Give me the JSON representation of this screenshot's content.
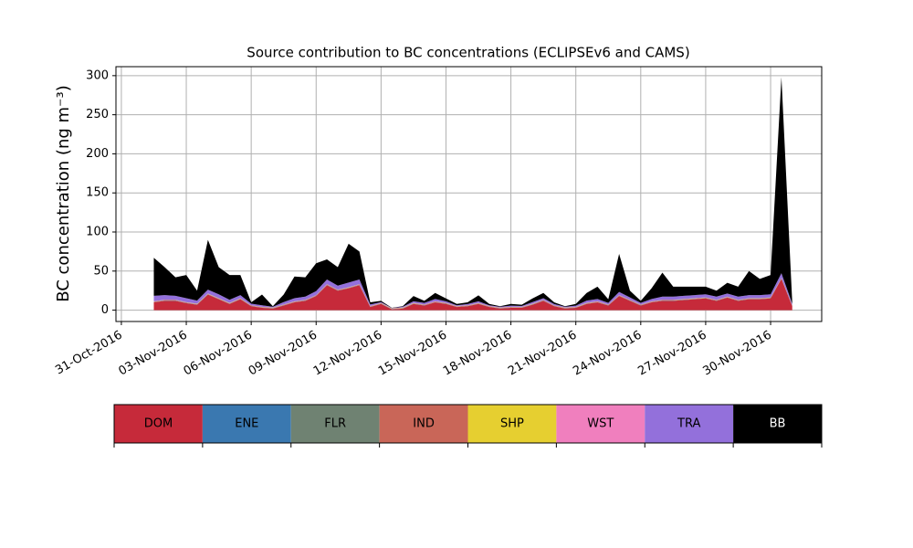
{
  "chart_data": {
    "type": "stacked_area",
    "title": "Source contribution to BC concentrations (ECLIPSEv6 and CAMS)",
    "y_label": "BC concentration (ng m⁻³)",
    "x": [
      "2016-11-01T12:00",
      "2016-11-02T00:00",
      "2016-11-02T12:00",
      "2016-11-03T00:00",
      "2016-11-03T12:00",
      "2016-11-04T00:00",
      "2016-11-04T12:00",
      "2016-11-05T00:00",
      "2016-11-05T12:00",
      "2016-11-06T00:00",
      "2016-11-06T12:00",
      "2016-11-07T00:00",
      "2016-11-07T12:00",
      "2016-11-08T00:00",
      "2016-11-08T12:00",
      "2016-11-09T00:00",
      "2016-11-09T12:00",
      "2016-11-10T00:00",
      "2016-11-10T12:00",
      "2016-11-11T00:00",
      "2016-11-11T12:00",
      "2016-11-12T00:00",
      "2016-11-12T12:00",
      "2016-11-13T00:00",
      "2016-11-13T12:00",
      "2016-11-14T00:00",
      "2016-11-14T12:00",
      "2016-11-15T00:00",
      "2016-11-15T12:00",
      "2016-11-16T00:00",
      "2016-11-16T12:00",
      "2016-11-17T00:00",
      "2016-11-17T12:00",
      "2016-11-18T00:00",
      "2016-11-18T12:00",
      "2016-11-19T00:00",
      "2016-11-19T12:00",
      "2016-11-20T00:00",
      "2016-11-20T12:00",
      "2016-11-21T00:00",
      "2016-11-21T12:00",
      "2016-11-22T00:00",
      "2016-11-22T12:00",
      "2016-11-23T00:00",
      "2016-11-23T12:00",
      "2016-11-24T00:00",
      "2016-11-24T12:00",
      "2016-11-25T00:00",
      "2016-11-25T12:00",
      "2016-11-26T00:00",
      "2016-11-26T12:00",
      "2016-11-27T00:00",
      "2016-11-27T12:00",
      "2016-11-28T00:00",
      "2016-11-28T12:00",
      "2016-11-29T00:00",
      "2016-11-29T12:00",
      "2016-11-30T00:00",
      "2016-11-30T12:00",
      "2016-12-01T00:00"
    ],
    "series": [
      {
        "name": "DOM",
        "color": "#c62a3a",
        "values": [
          10,
          12,
          12,
          9,
          7,
          20,
          14,
          8,
          14,
          5,
          3,
          2,
          6,
          10,
          12,
          18,
          32,
          25,
          28,
          32,
          4,
          8,
          1,
          2,
          8,
          6,
          10,
          8,
          4,
          5,
          8,
          4,
          2,
          3,
          3,
          7,
          12,
          5,
          2,
          3,
          8,
          10,
          6,
          18,
          12,
          6,
          10,
          12,
          12,
          13,
          14,
          15,
          12,
          16,
          12,
          14,
          14,
          15,
          40,
          5
        ]
      },
      {
        "name": "ENE",
        "color": "#3a78b0",
        "values": [
          0.2,
          0.2,
          0.2,
          0.2,
          0.2,
          0.2,
          0.2,
          0.2,
          0.2,
          0.2,
          0.2,
          0.2,
          0.2,
          0.2,
          0.2,
          0.2,
          0.2,
          0.2,
          0.2,
          0.2,
          0.2,
          0.2,
          0.2,
          0.2,
          0.2,
          0.2,
          0.2,
          0.2,
          0.2,
          0.2,
          0.2,
          0.2,
          0.2,
          0.2,
          0.2,
          0.2,
          0.2,
          0.2,
          0.2,
          0.2,
          0.2,
          0.2,
          0.2,
          0.2,
          0.2,
          0.2,
          0.2,
          0.2,
          0.2,
          0.2,
          0.2,
          0.2,
          0.2,
          0.2,
          0.2,
          0.2,
          0.2,
          0.2,
          0.2,
          0.2
        ]
      },
      {
        "name": "FLR",
        "color": "#6f8272",
        "values": [
          0.2,
          0.2,
          0.2,
          0.2,
          0.2,
          0.2,
          0.2,
          0.2,
          0.2,
          0.2,
          0.2,
          0.2,
          0.2,
          0.2,
          0.2,
          0.2,
          0.2,
          0.2,
          0.2,
          0.2,
          0.2,
          0.2,
          0.2,
          0.2,
          0.2,
          0.2,
          0.2,
          0.2,
          0.2,
          0.2,
          0.2,
          0.2,
          0.2,
          0.2,
          0.2,
          0.2,
          0.2,
          0.2,
          0.2,
          0.2,
          0.2,
          0.2,
          0.2,
          0.2,
          0.2,
          0.2,
          0.2,
          0.2,
          0.2,
          0.2,
          0.2,
          0.2,
          0.2,
          0.2,
          0.2,
          0.2,
          0.2,
          0.2,
          0.2,
          0.2
        ]
      },
      {
        "name": "IND",
        "color": "#c96658",
        "values": [
          0.5,
          0.5,
          0.5,
          0.5,
          0.5,
          0.5,
          0.5,
          0.5,
          0.5,
          0.5,
          0.5,
          0.5,
          0.5,
          0.5,
          0.5,
          0.5,
          0.5,
          0.5,
          0.5,
          0.5,
          0.5,
          0.5,
          0.5,
          0.5,
          0.5,
          0.5,
          0.5,
          0.5,
          0.5,
          0.5,
          0.5,
          0.5,
          0.5,
          0.5,
          0.5,
          0.5,
          0.5,
          0.5,
          0.5,
          0.5,
          0.5,
          0.5,
          0.5,
          0.5,
          0.5,
          0.5,
          0.5,
          0.5,
          0.5,
          0.5,
          0.5,
          0.5,
          0.5,
          0.5,
          0.5,
          0.5,
          0.5,
          0.5,
          0.5,
          0.5
        ]
      },
      {
        "name": "SHP",
        "color": "#e6cf30",
        "values": [
          0.2,
          0.2,
          0.2,
          0.2,
          0.2,
          0.2,
          0.2,
          0.2,
          0.2,
          0.2,
          0.2,
          0.2,
          0.2,
          0.2,
          0.2,
          0.2,
          0.2,
          0.2,
          0.2,
          0.2,
          0.2,
          0.2,
          0.2,
          0.2,
          0.2,
          0.2,
          0.2,
          0.2,
          0.2,
          0.2,
          0.2,
          0.2,
          0.2,
          0.2,
          0.2,
          0.2,
          0.2,
          0.2,
          0.2,
          0.2,
          0.2,
          0.2,
          0.2,
          0.2,
          0.2,
          0.2,
          0.2,
          0.2,
          0.2,
          0.2,
          0.2,
          0.2,
          0.2,
          0.2,
          0.2,
          0.2,
          0.2,
          0.2,
          0.2,
          0.2
        ]
      },
      {
        "name": "WST",
        "color": "#f07fbe",
        "values": [
          0.2,
          0.2,
          0.2,
          0.2,
          0.2,
          0.2,
          0.2,
          0.2,
          0.2,
          0.2,
          0.2,
          0.2,
          0.2,
          0.2,
          0.2,
          0.2,
          0.2,
          0.2,
          0.2,
          0.2,
          0.2,
          0.2,
          0.2,
          0.2,
          0.2,
          0.2,
          0.2,
          0.2,
          0.2,
          0.2,
          0.2,
          0.2,
          0.2,
          0.2,
          0.2,
          0.2,
          0.2,
          0.2,
          0.2,
          0.2,
          0.2,
          0.2,
          0.2,
          0.2,
          0.2,
          0.2,
          0.2,
          0.2,
          0.2,
          0.2,
          0.2,
          0.2,
          0.2,
          0.2,
          0.2,
          0.2,
          0.2,
          0.2,
          0.2,
          0.2
        ]
      },
      {
        "name": "TRA",
        "color": "#9370db",
        "values": [
          7,
          6,
          5,
          5,
          4,
          5,
          5,
          4,
          4,
          2,
          2,
          1,
          3,
          4,
          4,
          5,
          6,
          5,
          6,
          6,
          2,
          1,
          0.5,
          1,
          2,
          2,
          3,
          2,
          1,
          1.5,
          2,
          1,
          1,
          1.5,
          1,
          2,
          2,
          1.5,
          1,
          1.5,
          3,
          3,
          2,
          4,
          3,
          2,
          3,
          4,
          4,
          4,
          4,
          4,
          4,
          4,
          4,
          4,
          4,
          4,
          6,
          2
        ]
      },
      {
        "name": "BB",
        "color": "#000000",
        "values": [
          48.7,
          35.7,
          23.7,
          29.7,
          12.7,
          63.7,
          34.7,
          31.7,
          25.7,
          1.7,
          13.7,
          0.7,
          9.7,
          27.7,
          24.7,
          35.7,
          25.7,
          23.7,
          49.7,
          35.7,
          2.7,
          1.7,
          0.2,
          0.7,
          6.7,
          2.7,
          7.7,
          3.7,
          1.7,
          2.2,
          7.7,
          1.7,
          0.7,
          2.2,
          1.7,
          4.7,
          6.7,
          2.2,
          0.7,
          2.2,
          9.7,
          15.7,
          4.7,
          48.7,
          8.7,
          2.7,
          13.7,
          30.7,
          12.7,
          11.7,
          10.7,
          9.7,
          7.7,
          13.7,
          12.7,
          30.7,
          20.7,
          24.7,
          250.7,
          1.7
        ]
      }
    ],
    "xlim": [
      "2016-10-30T18:00",
      "2016-12-02T08:40"
    ],
    "xticks": [
      {
        "value": "2016-10-31T00:00",
        "label": "31-Oct-2016"
      },
      {
        "value": "2016-11-03T00:00",
        "label": "03-Nov-2016"
      },
      {
        "value": "2016-11-06T00:00",
        "label": "06-Nov-2016"
      },
      {
        "value": "2016-11-09T00:00",
        "label": "09-Nov-2016"
      },
      {
        "value": "2016-11-12T00:00",
        "label": "12-Nov-2016"
      },
      {
        "value": "2016-11-15T00:00",
        "label": "15-Nov-2016"
      },
      {
        "value": "2016-11-18T00:00",
        "label": "18-Nov-2016"
      },
      {
        "value": "2016-11-21T00:00",
        "label": "21-Nov-2016"
      },
      {
        "value": "2016-11-24T00:00",
        "label": "24-Nov-2016"
      },
      {
        "value": "2016-11-27T00:00",
        "label": "27-Nov-2016"
      },
      {
        "value": "2016-11-30T00:00",
        "label": "30-Nov-2016"
      }
    ],
    "ylim": [
      -14.5,
      311.5
    ],
    "yticks": [
      0,
      50,
      100,
      150,
      200,
      250,
      300
    ],
    "grid": true,
    "legend": "bottom"
  }
}
